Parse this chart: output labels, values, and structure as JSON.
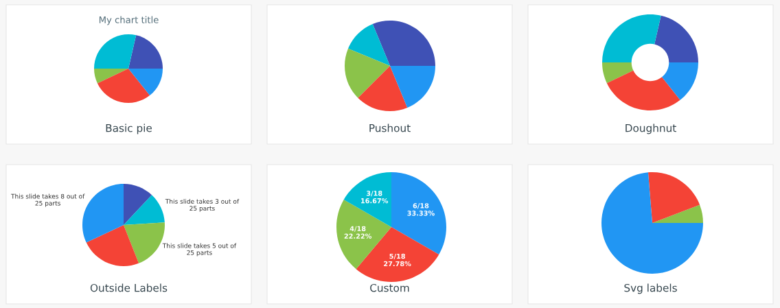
{
  "chart_data": [
    {
      "type": "pie",
      "title": "Basic pie",
      "annotations": [
        "My chart title"
      ],
      "categories": [
        null,
        null,
        null,
        null,
        null
      ],
      "values": [
        21.4,
        28.6,
        7.1,
        28.6,
        14.3
      ],
      "colors": [
        "#3f51b5",
        "#00bcd4",
        "#8bc34a",
        "#f44336",
        "#2196f3"
      ]
    },
    {
      "type": "pie",
      "title": "Pushout",
      "categories": [
        null,
        null,
        null,
        null,
        null
      ],
      "values": [
        31.25,
        12.5,
        18.75,
        18.75,
        18.75
      ],
      "colors": [
        "#3f51b5",
        "#00bcd4",
        "#8bc34a",
        "#f44336",
        "#2196f3"
      ]
    },
    {
      "type": "donut",
      "title": "Doughnut",
      "categories": [
        null,
        null,
        null,
        null,
        null
      ],
      "values": [
        21.4,
        28.6,
        7.1,
        28.6,
        14.3
      ],
      "colors": [
        "#3f51b5",
        "#00bcd4",
        "#8bc34a",
        "#f44336",
        "#2196f3"
      ]
    },
    {
      "type": "pie",
      "title": "Outside Labels",
      "categories": [
        null,
        null,
        null,
        null,
        null
      ],
      "values": [
        12,
        12,
        20,
        24,
        32
      ],
      "colors": [
        "#3f51b5",
        "#00bcd4",
        "#8bc34a",
        "#f44336",
        "#2196f3"
      ],
      "value_labels": [
        null,
        "This slide takes 3 out of\n25 parts",
        "This slide takes 5 out of\n25 parts",
        null,
        "This slide takes 8 out of\n25 parts"
      ]
    },
    {
      "type": "pie",
      "title": "Custom",
      "categories": [
        null,
        null,
        null,
        null
      ],
      "values": [
        33.33,
        27.78,
        22.22,
        16.67
      ],
      "colors": [
        "#2196f3",
        "#f44336",
        "#8bc34a",
        "#00bcd4"
      ],
      "value_labels": [
        "6/18\n33.33%",
        "5/18\n27.78%",
        "4/18\n22.22%",
        "3/18\n16.67%"
      ]
    },
    {
      "type": "pie",
      "title": "Svg labels",
      "categories": [
        null,
        null,
        null
      ],
      "values": [
        5.8,
        20.5,
        73.7
      ],
      "colors": [
        "#8bc34a",
        "#f44336",
        "#2196f3"
      ]
    }
  ]
}
